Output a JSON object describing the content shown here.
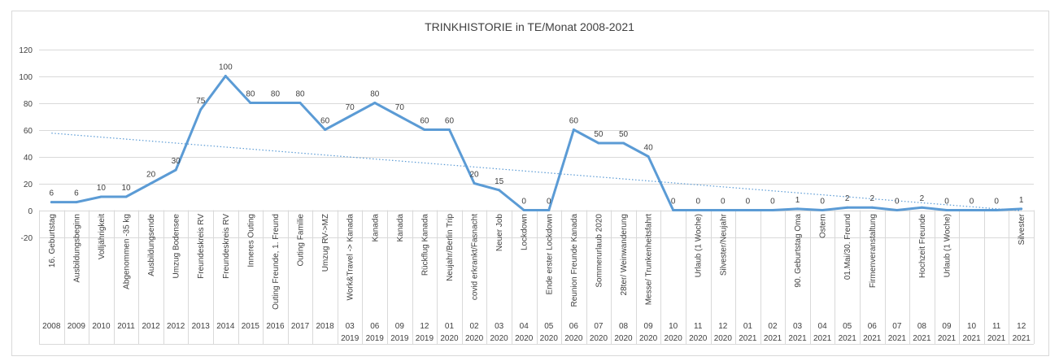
{
  "chart_data": {
    "type": "line",
    "title": "TRINKHISTORIE in TE/Monat 2008-2021",
    "xlabel": "",
    "ylabel": "",
    "ylim": [
      -20,
      120
    ],
    "yticks": [
      -20,
      0,
      20,
      40,
      60,
      80,
      100,
      120
    ],
    "grid": true,
    "legend": "none",
    "trendline": "linear (dotted)",
    "colors": {
      "line": "#5B9BD5",
      "trend": "#5B9BD5",
      "grid": "#D9D9D9"
    },
    "categories": [
      {
        "label": "16. Geburtstag",
        "period": [
          "2008"
        ]
      },
      {
        "label": "Ausbildungsbeginn",
        "period": [
          "2009"
        ]
      },
      {
        "label": "Volljährigkeit",
        "period": [
          "2010"
        ]
      },
      {
        "label": "Abgenommen -35 kg",
        "period": [
          "2011"
        ]
      },
      {
        "label": "Ausbildungsende",
        "period": [
          "2012"
        ]
      },
      {
        "label": "Umzug Bodensee",
        "period": [
          "2012"
        ]
      },
      {
        "label": "Freundeskreis RV",
        "period": [
          "2013"
        ]
      },
      {
        "label": "Freundeskreis RV",
        "period": [
          "2014"
        ]
      },
      {
        "label": "Inneres Outing",
        "period": [
          "2015"
        ]
      },
      {
        "label": "Outing Freunde, 1. Freund",
        "period": [
          "2016"
        ]
      },
      {
        "label": "Outing Familie",
        "period": [
          "2017"
        ]
      },
      {
        "label": "Umzug RV->MZ",
        "period": [
          "2018"
        ]
      },
      {
        "label": "Work&Travel -> Kanada",
        "period": [
          "03",
          "2019"
        ]
      },
      {
        "label": "Kanada",
        "period": [
          "06",
          "2019"
        ]
      },
      {
        "label": "Kanada",
        "period": [
          "09",
          "2019"
        ]
      },
      {
        "label": "Rückflug Kanada",
        "period": [
          "12",
          "2019"
        ]
      },
      {
        "label": "Neujahr/Berlin Trip",
        "period": [
          "01",
          "2020"
        ]
      },
      {
        "label": "covid erkrankt/Fasnacht",
        "period": [
          "02",
          "2020"
        ]
      },
      {
        "label": "Neuer Job",
        "period": [
          "03",
          "2020"
        ]
      },
      {
        "label": "Lockdown",
        "period": [
          "04",
          "2020"
        ]
      },
      {
        "label": "Ende erster Lockdown",
        "period": [
          "05",
          "2020"
        ]
      },
      {
        "label": "Reunion Freunde Kanada",
        "period": [
          "06",
          "2020"
        ]
      },
      {
        "label": "Sommerurlaub 2020",
        "period": [
          "07",
          "2020"
        ]
      },
      {
        "label": "28ter/ Weinwanderung",
        "period": [
          "08",
          "2020"
        ]
      },
      {
        "label": "Messe/ Trunkenheitsfahrt",
        "period": [
          "09",
          "2020"
        ]
      },
      {
        "label": "",
        "period": [
          "10",
          "2020"
        ]
      },
      {
        "label": "Urlaub (1 Woche)",
        "period": [
          "11",
          "2020"
        ]
      },
      {
        "label": "Silvester/Neujahr",
        "period": [
          "12",
          "2020"
        ]
      },
      {
        "label": "",
        "period": [
          "01",
          "2021"
        ]
      },
      {
        "label": "",
        "period": [
          "02",
          "2021"
        ]
      },
      {
        "label": "90. Geburtstag Oma",
        "period": [
          "03",
          "2021"
        ]
      },
      {
        "label": "Ostern",
        "period": [
          "04",
          "2021"
        ]
      },
      {
        "label": "01.Mai/30. Freund",
        "period": [
          "05",
          "2021"
        ]
      },
      {
        "label": "Firmenveranstaltung",
        "period": [
          "06",
          "2021"
        ]
      },
      {
        "label": "",
        "period": [
          "07",
          "2021"
        ]
      },
      {
        "label": "Hochzeit Freunde",
        "period": [
          "08",
          "2021"
        ]
      },
      {
        "label": "Urlaub (1 Woche)",
        "period": [
          "09",
          "2021"
        ]
      },
      {
        "label": "",
        "period": [
          "10",
          "2021"
        ]
      },
      {
        "label": "",
        "period": [
          "11",
          "2021"
        ]
      },
      {
        "label": "Silvester",
        "period": [
          "12",
          "2021"
        ]
      }
    ],
    "values": [
      6,
      6,
      10,
      10,
      20,
      30,
      75,
      100,
      80,
      80,
      80,
      60,
      70,
      80,
      70,
      60,
      60,
      20,
      15,
      0,
      0,
      60,
      50,
      50,
      40,
      0,
      0,
      0,
      0,
      0,
      1,
      0,
      2,
      2,
      0,
      2,
      0,
      0,
      0,
      1
    ]
  }
}
